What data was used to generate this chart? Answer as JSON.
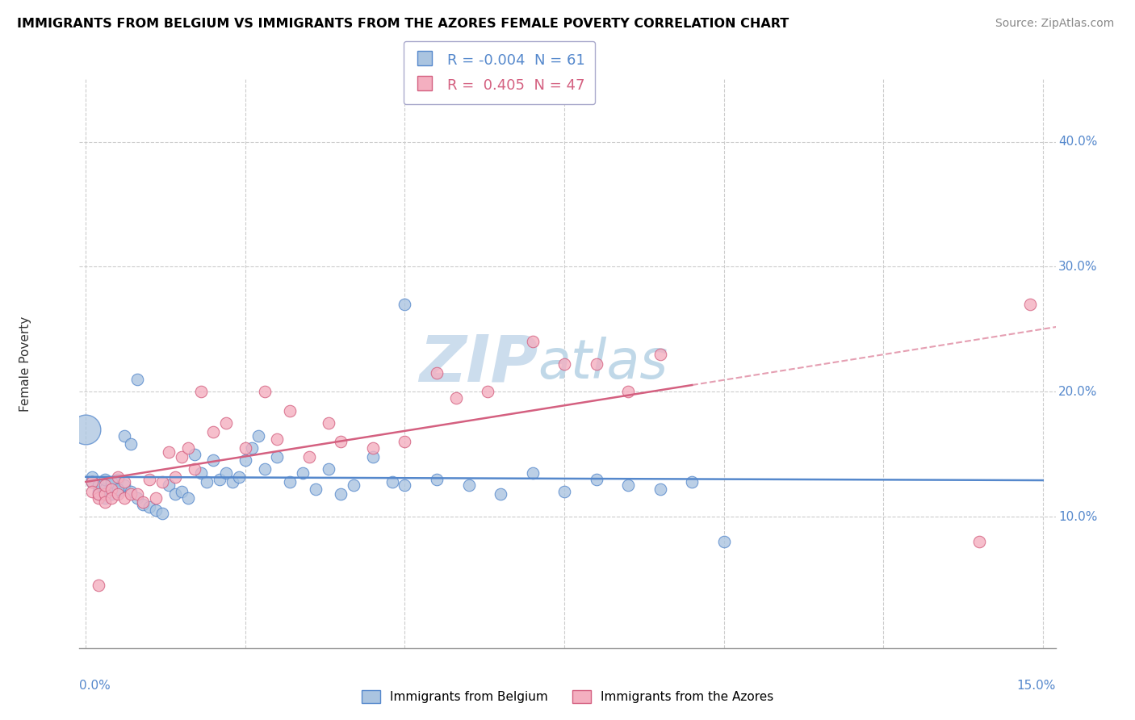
{
  "title": "IMMIGRANTS FROM BELGIUM VS IMMIGRANTS FROM THE AZORES FEMALE POVERTY CORRELATION CHART",
  "source": "Source: ZipAtlas.com",
  "ylabel": "Female Poverty",
  "r_belgium": -0.004,
  "n_belgium": 61,
  "r_azores": 0.405,
  "n_azores": 47,
  "color_belgium": "#aac4e0",
  "color_azores": "#f4afc0",
  "line_belgium": "#5588cc",
  "line_azores": "#d46080",
  "watermark_color": "#ccdded",
  "bg_color": "#ffffff",
  "grid_color": "#cccccc",
  "xmin": 0.0,
  "xmax": 0.15,
  "ymin": 0.0,
  "ymax": 0.44,
  "yticks": [
    0.1,
    0.2,
    0.3,
    0.4
  ],
  "ytick_labels": [
    "10.0%",
    "20.0%",
    "30.0%",
    "40.0%"
  ],
  "blue_x": [
    0.005,
    0.006,
    0.007,
    0.008,
    0.009,
    0.01,
    0.011,
    0.012,
    0.013,
    0.014,
    0.015,
    0.016,
    0.017,
    0.018,
    0.019,
    0.02,
    0.021,
    0.022,
    0.023,
    0.024,
    0.025,
    0.026,
    0.027,
    0.028,
    0.03,
    0.032,
    0.034,
    0.036,
    0.038,
    0.04,
    0.042,
    0.045,
    0.048,
    0.05,
    0.055,
    0.06,
    0.065,
    0.07,
    0.075,
    0.08,
    0.085,
    0.09,
    0.095,
    0.1,
    0.001,
    0.001,
    0.002,
    0.002,
    0.002,
    0.003,
    0.003,
    0.003,
    0.004,
    0.004,
    0.004,
    0.005,
    0.005,
    0.006,
    0.007,
    0.008,
    0.05
  ],
  "blue_y": [
    0.13,
    0.125,
    0.12,
    0.115,
    0.11,
    0.108,
    0.105,
    0.103,
    0.125,
    0.118,
    0.12,
    0.115,
    0.15,
    0.135,
    0.128,
    0.145,
    0.13,
    0.135,
    0.128,
    0.132,
    0.145,
    0.155,
    0.165,
    0.138,
    0.148,
    0.128,
    0.135,
    0.122,
    0.138,
    0.118,
    0.125,
    0.148,
    0.128,
    0.125,
    0.13,
    0.125,
    0.118,
    0.135,
    0.12,
    0.13,
    0.125,
    0.122,
    0.128,
    0.08,
    0.132,
    0.128,
    0.12,
    0.118,
    0.125,
    0.115,
    0.122,
    0.13,
    0.118,
    0.125,
    0.128,
    0.12,
    0.122,
    0.165,
    0.158,
    0.21,
    0.27
  ],
  "pink_x": [
    0.001,
    0.001,
    0.002,
    0.002,
    0.003,
    0.003,
    0.003,
    0.004,
    0.004,
    0.005,
    0.005,
    0.006,
    0.006,
    0.007,
    0.008,
    0.009,
    0.01,
    0.011,
    0.012,
    0.013,
    0.014,
    0.015,
    0.016,
    0.017,
    0.018,
    0.02,
    0.022,
    0.025,
    0.028,
    0.03,
    0.032,
    0.035,
    0.038,
    0.04,
    0.045,
    0.05,
    0.055,
    0.058,
    0.063,
    0.07,
    0.075,
    0.08,
    0.085,
    0.09,
    0.14,
    0.002,
    0.148
  ],
  "pink_y": [
    0.128,
    0.12,
    0.115,
    0.118,
    0.118,
    0.112,
    0.125,
    0.122,
    0.115,
    0.118,
    0.132,
    0.115,
    0.128,
    0.118,
    0.118,
    0.112,
    0.13,
    0.115,
    0.128,
    0.152,
    0.132,
    0.148,
    0.155,
    0.138,
    0.2,
    0.168,
    0.175,
    0.155,
    0.2,
    0.162,
    0.185,
    0.148,
    0.175,
    0.16,
    0.155,
    0.16,
    0.215,
    0.195,
    0.2,
    0.24,
    0.222,
    0.222,
    0.2,
    0.23,
    0.08,
    0.045,
    0.27
  ]
}
